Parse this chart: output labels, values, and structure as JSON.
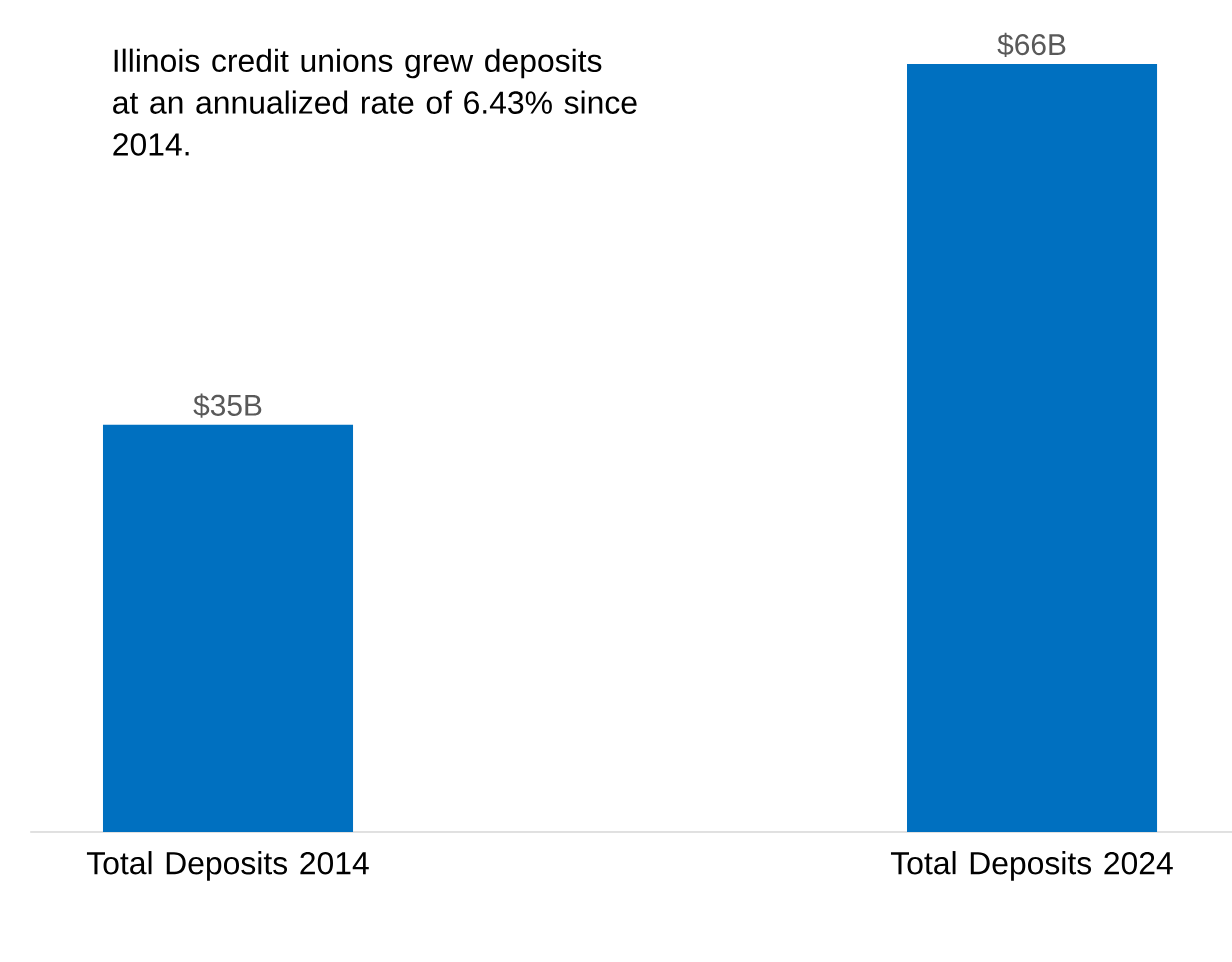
{
  "chart_data": {
    "type": "bar",
    "categories": [
      "Total Deposits 2014",
      "Total Deposits 2024"
    ],
    "values": [
      35,
      66
    ],
    "value_labels": [
      "$35B",
      "$66B"
    ],
    "color": "#0070c0",
    "annotations": [
      "Illinois credit unions grew deposits at an annualized rate of 6.43% since 2014."
    ]
  }
}
